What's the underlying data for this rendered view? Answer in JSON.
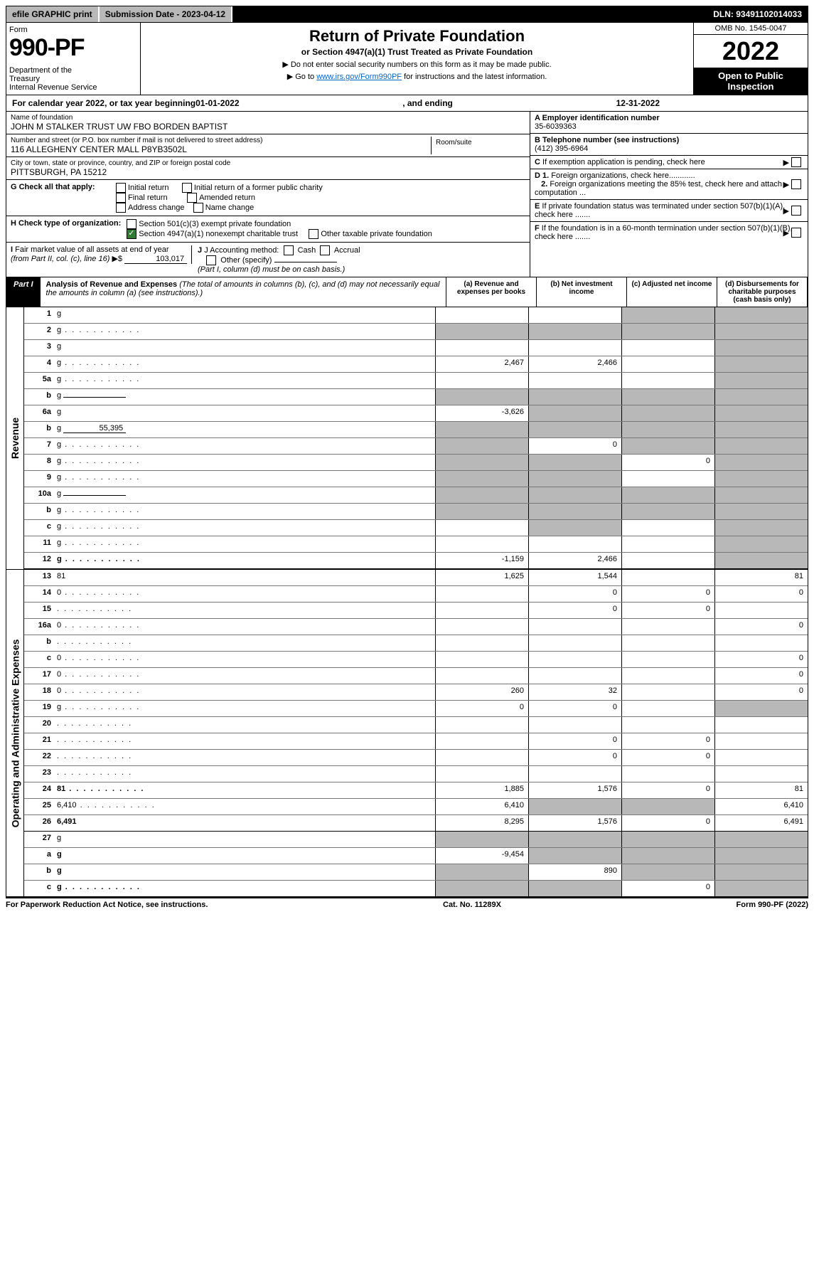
{
  "top": {
    "efile": "efile GRAPHIC print",
    "sub_date_label": "Submission Date - 2023-04-12",
    "dln": "DLN: 93491102014033"
  },
  "header": {
    "form_label": "Form",
    "form_number": "990-PF",
    "dept": "Department of the Treasury\nInternal Revenue Service",
    "title": "Return of Private Foundation",
    "subtitle": "or Section 4947(a)(1) Trust Treated as Private Foundation",
    "bullet1": "▶ Do not enter social security numbers on this form as it may be made public.",
    "bullet2_pre": "▶ Go to ",
    "bullet2_link": "www.irs.gov/Form990PF",
    "bullet2_post": " for instructions and the latest information.",
    "omb": "OMB No. 1545-0047",
    "year": "2022",
    "open_public": "Open to Public Inspection"
  },
  "cal": {
    "pre": "For calendar year 2022, or tax year beginning ",
    "begin": "01-01-2022",
    "mid": ", and ending ",
    "end": "12-31-2022"
  },
  "info_left": {
    "name_label": "Name of foundation",
    "name": "JOHN M STALKER TRUST UW FBO BORDEN BAPTIST",
    "addr_label": "Number and street (or P.O. box number if mail is not delivered to street address)",
    "addr": "116 ALLEGHENY CENTER MALL P8YB3502L",
    "room_label": "Room/suite",
    "city_label": "City or town, state or province, country, and ZIP or foreign postal code",
    "city": "PITTSBURGH, PA  15212",
    "g_label": "G Check all that apply:",
    "g_initial": "Initial return",
    "g_initial_former": "Initial return of a former public charity",
    "g_final": "Final return",
    "g_amended": "Amended return",
    "g_addr_change": "Address change",
    "g_name_change": "Name change",
    "h_label": "H Check type of organization:",
    "h_501c3": "Section 501(c)(3) exempt private foundation",
    "h_4947": "Section 4947(a)(1) nonexempt charitable trust",
    "h_other": "Other taxable private foundation",
    "i_label": "I Fair market value of all assets at end of year (from Part II, col. (c), line 16)",
    "i_arrow": "▶$",
    "i_val": "103,017",
    "j_label": "J Accounting method:",
    "j_cash": "Cash",
    "j_accrual": "Accrual",
    "j_other": "Other (specify)",
    "j_note": "(Part I, column (d) must be on cash basis.)"
  },
  "info_right": {
    "a_label": "A Employer identification number",
    "a_val": "35-6039363",
    "b_label": "B Telephone number (see instructions)",
    "b_val": "(412) 395-6964",
    "c_label": "C If exemption application is pending, check here",
    "d1_label": "D 1. Foreign organizations, check here............",
    "d2_label": "2. Foreign organizations meeting the 85% test, check here and attach computation ...",
    "e_label": "E If private foundation status was terminated under section 507(b)(1)(A), check here .......",
    "f_label": "F If the foundation is in a 60-month termination under section 507(b)(1)(B), check here ......."
  },
  "part1": {
    "label": "Part I",
    "title": "Analysis of Revenue and Expenses",
    "note": "(The total of amounts in columns (b), (c), and (d) may not necessarily equal the amounts in column (a) (see instructions).)",
    "col_a": "(a) Revenue and expenses per books",
    "col_b": "(b) Net investment income",
    "col_c": "(c) Adjusted net income",
    "col_d": "(d) Disbursements for charitable purposes (cash basis only)"
  },
  "sections": {
    "revenue": "Revenue",
    "expenses": "Operating and Administrative Expenses"
  },
  "rows": [
    {
      "n": "1",
      "d": "g",
      "a": "",
      "b": "",
      "c": "g"
    },
    {
      "n": "2",
      "d": "g",
      "dots": true,
      "a": "g",
      "b": "g",
      "c": "g",
      "bold_not": true
    },
    {
      "n": "3",
      "d": "g",
      "a": "",
      "b": "",
      "c": ""
    },
    {
      "n": "4",
      "d": "g",
      "dots": true,
      "a": "2,467",
      "b": "2,466",
      "c": ""
    },
    {
      "n": "5a",
      "d": "g",
      "dots": true,
      "a": "",
      "b": "",
      "c": ""
    },
    {
      "n": "b",
      "d": "g",
      "field": "",
      "a": "g",
      "b": "g",
      "c": "g"
    },
    {
      "n": "6a",
      "d": "g",
      "a": "-3,626",
      "b": "g",
      "c": "g"
    },
    {
      "n": "b",
      "d": "g",
      "field": "55,395",
      "a": "g",
      "b": "g",
      "c": "g"
    },
    {
      "n": "7",
      "d": "g",
      "dots": true,
      "a": "g",
      "b": "0",
      "c": "g"
    },
    {
      "n": "8",
      "d": "g",
      "dots": true,
      "a": "g",
      "b": "g",
      "c": "0"
    },
    {
      "n": "9",
      "d": "g",
      "dots": true,
      "a": "g",
      "b": "g",
      "c": ""
    },
    {
      "n": "10a",
      "d": "g",
      "field": "",
      "a": "g",
      "b": "g",
      "c": "g"
    },
    {
      "n": "b",
      "d": "g",
      "dots": true,
      "field": "",
      "a": "g",
      "b": "g",
      "c": "g"
    },
    {
      "n": "c",
      "d": "g",
      "dots": true,
      "a": "",
      "b": "g",
      "c": ""
    },
    {
      "n": "11",
      "d": "g",
      "dots": true,
      "a": "",
      "b": "",
      "c": ""
    },
    {
      "n": "12",
      "d": "g",
      "dots": true,
      "bold": true,
      "a": "-1,159",
      "b": "2,466",
      "c": "",
      "heavy": true
    }
  ],
  "exp_rows": [
    {
      "n": "13",
      "d": "81",
      "a": "1,625",
      "b": "1,544",
      "c": ""
    },
    {
      "n": "14",
      "d": "0",
      "dots": true,
      "a": "",
      "b": "0",
      "c": "0"
    },
    {
      "n": "15",
      "d": "",
      "dots": true,
      "a": "",
      "b": "0",
      "c": "0"
    },
    {
      "n": "16a",
      "d": "0",
      "dots": true,
      "a": "",
      "b": "",
      "c": ""
    },
    {
      "n": "b",
      "d": "",
      "dots": true,
      "a": "",
      "b": "",
      "c": ""
    },
    {
      "n": "c",
      "d": "0",
      "dots": true,
      "a": "",
      "b": "",
      "c": ""
    },
    {
      "n": "17",
      "d": "0",
      "dots": true,
      "a": "",
      "b": "",
      "c": ""
    },
    {
      "n": "18",
      "d": "0",
      "dots": true,
      "a": "260",
      "b": "32",
      "c": ""
    },
    {
      "n": "19",
      "d": "g",
      "dots": true,
      "a": "0",
      "b": "0",
      "c": ""
    },
    {
      "n": "20",
      "d": "",
      "dots": true,
      "a": "",
      "b": "",
      "c": ""
    },
    {
      "n": "21",
      "d": "",
      "dots": true,
      "a": "",
      "b": "0",
      "c": "0"
    },
    {
      "n": "22",
      "d": "",
      "dots": true,
      "a": "",
      "b": "0",
      "c": "0"
    },
    {
      "n": "23",
      "d": "",
      "dots": true,
      "a": "",
      "b": "",
      "c": ""
    },
    {
      "n": "24",
      "d": "81",
      "dots": true,
      "bold": true,
      "a": "1,885",
      "b": "1,576",
      "c": "0"
    },
    {
      "n": "25",
      "d": "6,410",
      "dots": true,
      "a": "6,410",
      "b": "g",
      "c": "g"
    },
    {
      "n": "26",
      "d": "6,491",
      "bold": true,
      "a": "8,295",
      "b": "1,576",
      "c": "0",
      "heavy": true
    },
    {
      "n": "27",
      "d": "g",
      "a": "g",
      "b": "g",
      "c": "g"
    },
    {
      "n": "a",
      "d": "g",
      "bold": true,
      "a": "-9,454",
      "b": "g",
      "c": "g"
    },
    {
      "n": "b",
      "d": "g",
      "bold": true,
      "a": "g",
      "b": "890",
      "c": "g"
    },
    {
      "n": "c",
      "d": "g",
      "dots": true,
      "bold": true,
      "a": "g",
      "b": "g",
      "c": "0"
    }
  ],
  "footer": {
    "left": "For Paperwork Reduction Act Notice, see instructions.",
    "mid": "Cat. No. 11289X",
    "right": "Form 990-PF (2022)"
  }
}
